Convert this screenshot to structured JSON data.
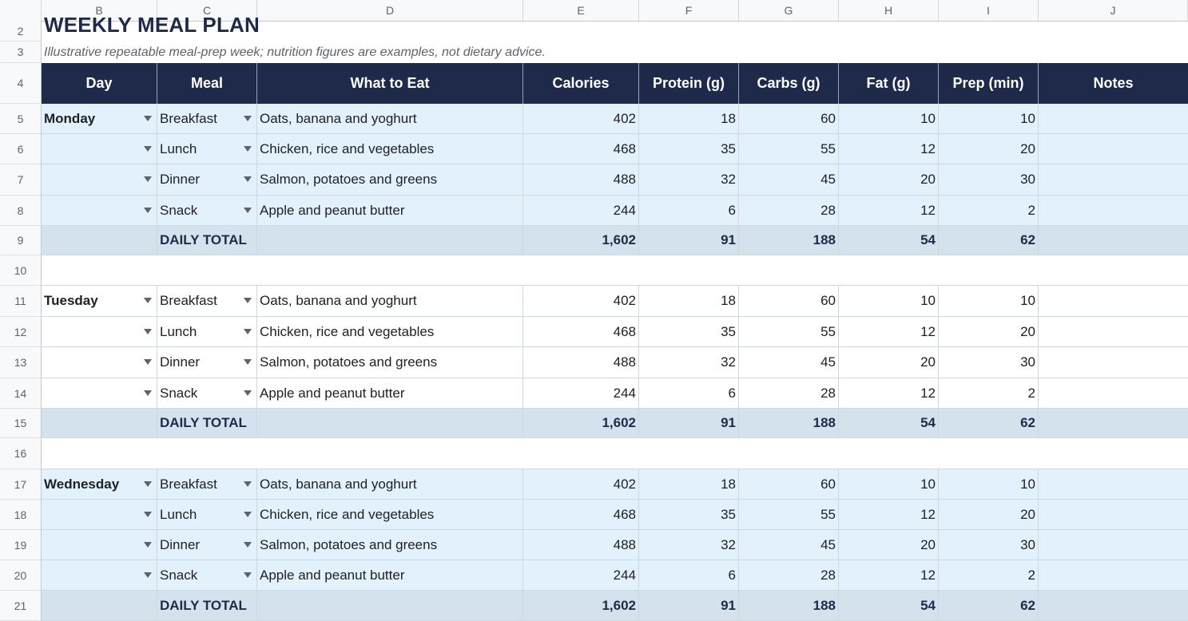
{
  "column_letters": [
    "B",
    "C",
    "D",
    "E",
    "F",
    "G",
    "H",
    "I",
    "J"
  ],
  "row_numbers": [
    "2",
    "3",
    "4",
    "5",
    "6",
    "7",
    "8",
    "9",
    "10",
    "11",
    "12",
    "13",
    "14",
    "15",
    "16",
    "17",
    "18",
    "19",
    "20",
    "21"
  ],
  "title": "WEEKLY MEAL PLAN",
  "subtitle": "Illustrative repeatable meal-prep week; nutrition figures are examples, not dietary advice.",
  "headers": [
    "Day",
    "Meal",
    "What to Eat",
    "Calories",
    "Protein (g)",
    "Carbs (g)",
    "Fat (g)",
    "Prep (min)",
    "Notes"
  ],
  "days": [
    {
      "day": "Monday",
      "meals": [
        {
          "meal": "Breakfast",
          "what": "Oats, banana and yoghurt",
          "calories": "402",
          "protein": "18",
          "carbs": "60",
          "fat": "10",
          "prep": "10",
          "notes": ""
        },
        {
          "meal": "Lunch",
          "what": "Chicken, rice and vegetables",
          "calories": "468",
          "protein": "35",
          "carbs": "55",
          "fat": "12",
          "prep": "20",
          "notes": ""
        },
        {
          "meal": "Dinner",
          "what": "Salmon, potatoes and greens",
          "calories": "488",
          "protein": "32",
          "carbs": "45",
          "fat": "20",
          "prep": "30",
          "notes": ""
        },
        {
          "meal": "Snack",
          "what": "Apple and peanut butter",
          "calories": "244",
          "protein": "6",
          "carbs": "28",
          "fat": "12",
          "prep": "2",
          "notes": ""
        }
      ],
      "total": {
        "label": "DAILY TOTAL",
        "calories": "1,602",
        "protein": "91",
        "carbs": "188",
        "fat": "54",
        "prep": "62"
      }
    },
    {
      "day": "Tuesday",
      "meals": [
        {
          "meal": "Breakfast",
          "what": "Oats, banana and yoghurt",
          "calories": "402",
          "protein": "18",
          "carbs": "60",
          "fat": "10",
          "prep": "10",
          "notes": ""
        },
        {
          "meal": "Lunch",
          "what": "Chicken, rice and vegetables",
          "calories": "468",
          "protein": "35",
          "carbs": "55",
          "fat": "12",
          "prep": "20",
          "notes": ""
        },
        {
          "meal": "Dinner",
          "what": "Salmon, potatoes and greens",
          "calories": "488",
          "protein": "32",
          "carbs": "45",
          "fat": "20",
          "prep": "30",
          "notes": ""
        },
        {
          "meal": "Snack",
          "what": "Apple and peanut butter",
          "calories": "244",
          "protein": "6",
          "carbs": "28",
          "fat": "12",
          "prep": "2",
          "notes": ""
        }
      ],
      "total": {
        "label": "DAILY TOTAL",
        "calories": "1,602",
        "protein": "91",
        "carbs": "188",
        "fat": "54",
        "prep": "62"
      }
    },
    {
      "day": "Wednesday",
      "meals": [
        {
          "meal": "Breakfast",
          "what": "Oats, banana and yoghurt",
          "calories": "402",
          "protein": "18",
          "carbs": "60",
          "fat": "10",
          "prep": "10",
          "notes": ""
        },
        {
          "meal": "Lunch",
          "what": "Chicken, rice and vegetables",
          "calories": "468",
          "protein": "35",
          "carbs": "55",
          "fat": "12",
          "prep": "20",
          "notes": ""
        },
        {
          "meal": "Dinner",
          "what": "Salmon, potatoes and greens",
          "calories": "488",
          "protein": "32",
          "carbs": "45",
          "fat": "20",
          "prep": "30",
          "notes": ""
        },
        {
          "meal": "Snack",
          "what": "Apple and peanut butter",
          "calories": "244",
          "protein": "6",
          "carbs": "28",
          "fat": "12",
          "prep": "2",
          "notes": ""
        }
      ],
      "total": {
        "label": "DAILY TOTAL",
        "calories": "1,602",
        "protein": "91",
        "carbs": "188",
        "fat": "54",
        "prep": "62"
      }
    }
  ],
  "colors": {
    "header_bg": "#1f2a4a",
    "row_alt": "#e3f1fc",
    "total_bg": "#d4e2ee",
    "title": "#1f2a4a"
  },
  "icons": {
    "dropdown": "dropdown-arrow-icon"
  }
}
